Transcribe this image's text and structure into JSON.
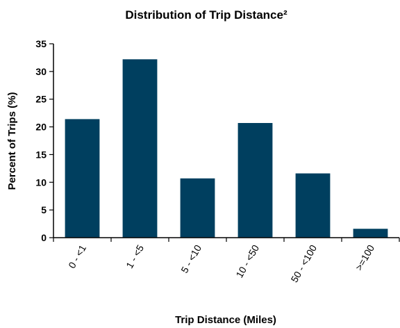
{
  "chart_data": {
    "type": "bar",
    "title": "Distribution of Trip Distance²",
    "xlabel": "Trip Distance (Miles)",
    "ylabel": "Percent of Trips (%)",
    "categories": [
      "0 - <1",
      "1 - <5",
      "5 - <10",
      "10 - <50",
      "50 - <100",
      ">=100"
    ],
    "values": [
      21.4,
      32.2,
      10.7,
      20.7,
      11.6,
      1.6
    ],
    "ylim": [
      0,
      35
    ],
    "yticks": [
      0,
      5,
      10,
      15,
      20,
      25,
      30,
      35
    ],
    "grid": false,
    "bar_color": "#003f5f"
  }
}
